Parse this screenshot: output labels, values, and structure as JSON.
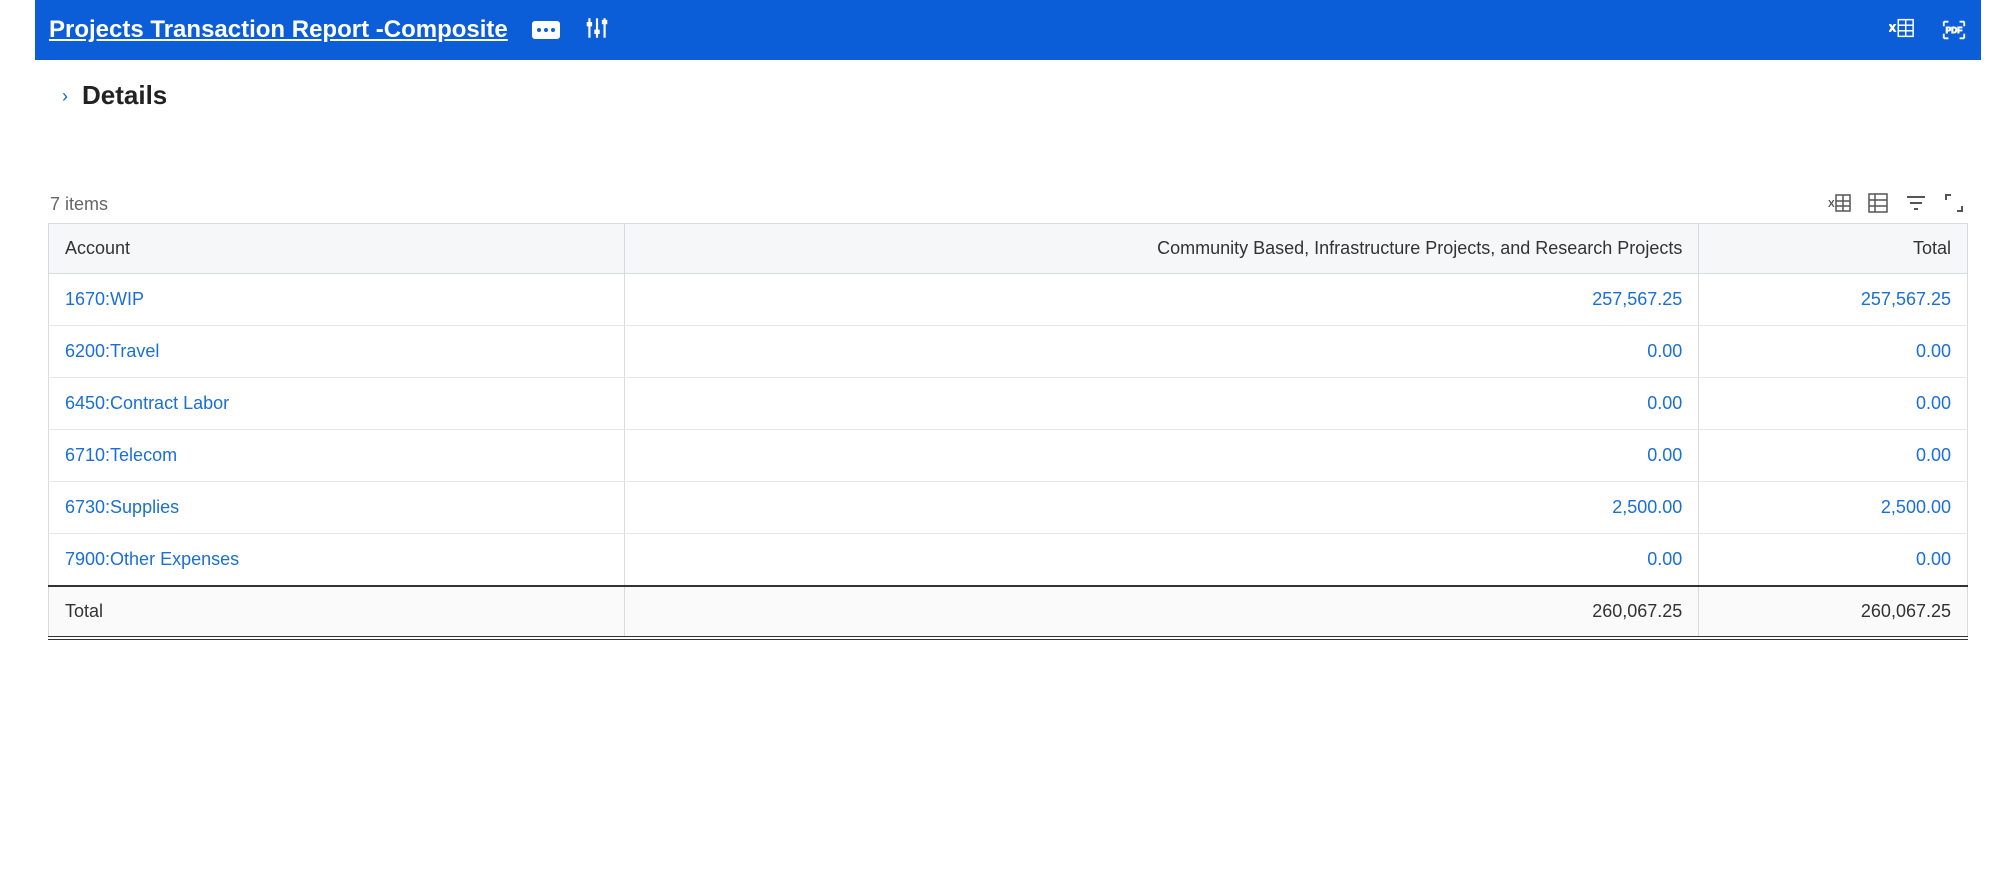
{
  "colors": {
    "brand": "#0b5ed7",
    "link": "#1a6fd6",
    "header_bg": "#f6f7f8",
    "grid_border": "#d7dbe0",
    "text": "#333333",
    "muted": "#666666",
    "white": "#ffffff",
    "total_rule": "#333333"
  },
  "topbar": {
    "title": "Projects Transaction Report -Composite",
    "actions_label": "More actions",
    "filter_settings_label": "Filter settings",
    "export_excel_label": "Export to Excel",
    "export_pdf_label": "Export to PDF",
    "pdf_badge_text": "PDF"
  },
  "details": {
    "heading": "Details",
    "expanded": false
  },
  "table": {
    "item_count_text": "7 items",
    "toolbar": {
      "export_excel": "Export",
      "grid_options": "Grid options",
      "filter": "Filter",
      "fullscreen": "Expand"
    },
    "columns": [
      {
        "key": "account",
        "label": "Account",
        "align": "left"
      },
      {
        "key": "group",
        "label": "Community Based, Infrastructure Projects, and Research Projects",
        "align": "right"
      },
      {
        "key": "total",
        "label": "Total",
        "align": "right"
      }
    ],
    "rows": [
      {
        "account": "1670:WIP",
        "group": "257,567.25",
        "total": "257,567.25"
      },
      {
        "account": "6200:Travel",
        "group": "0.00",
        "total": "0.00"
      },
      {
        "account": "6450:Contract Labor",
        "group": "0.00",
        "total": "0.00"
      },
      {
        "account": "6710:Telecom",
        "group": "0.00",
        "total": "0.00"
      },
      {
        "account": "6730:Supplies",
        "group": "2,500.00",
        "total": "2,500.00"
      },
      {
        "account": "7900:Other Expenses",
        "group": "0.00",
        "total": "0.00"
      }
    ],
    "total_row": {
      "label": "Total",
      "group": "260,067.25",
      "total": "260,067.25"
    }
  }
}
